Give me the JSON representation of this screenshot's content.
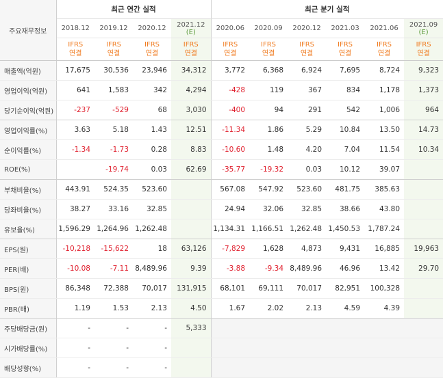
{
  "header": {
    "corner": "주요재무정보",
    "annual_title": "최근 연간 실적",
    "quarter_title": "최근 분기 실적",
    "periods": [
      "2018.12",
      "2019.12",
      "2020.12",
      "2021.12",
      "2020.06",
      "2020.09",
      "2020.12",
      "2021.03",
      "2021.06",
      "2021.09"
    ],
    "est_suffix": "(E)",
    "ifrs": "IFRS",
    "consol": "연결"
  },
  "rows": [
    {
      "label": "매출액(억원)",
      "values": [
        "17,675",
        "30,536",
        "23,946",
        "34,312",
        "3,772",
        "6,368",
        "6,924",
        "7,695",
        "8,724",
        "9,323"
      ]
    },
    {
      "label": "영업이익(억원)",
      "values": [
        "641",
        "1,583",
        "342",
        "4,294",
        "-428",
        "119",
        "367",
        "834",
        "1,178",
        "1,373"
      ]
    },
    {
      "label": "당기순이익(억원)",
      "values": [
        "-237",
        "-529",
        "68",
        "3,030",
        "-400",
        "94",
        "291",
        "542",
        "1,006",
        "964"
      ]
    },
    {
      "label": "영업이익률(%)",
      "values": [
        "3.63",
        "5.18",
        "1.43",
        "12.51",
        "-11.34",
        "1.86",
        "5.29",
        "10.84",
        "13.50",
        "14.73"
      ]
    },
    {
      "label": "순이익률(%)",
      "values": [
        "-1.34",
        "-1.73",
        "0.28",
        "8.83",
        "-10.60",
        "1.48",
        "4.20",
        "7.04",
        "11.54",
        "10.34"
      ]
    },
    {
      "label": "ROE(%)",
      "values": [
        "",
        "-19.74",
        "0.03",
        "62.69",
        "-35.77",
        "-19.32",
        "0.03",
        "10.12",
        "39.07",
        ""
      ]
    },
    {
      "label": "부채비율(%)",
      "values": [
        "443.91",
        "524.35",
        "523.60",
        "",
        "567.08",
        "547.92",
        "523.60",
        "481.75",
        "385.63",
        ""
      ]
    },
    {
      "label": "당좌비율(%)",
      "values": [
        "38.27",
        "33.16",
        "32.85",
        "",
        "24.94",
        "32.06",
        "32.85",
        "38.66",
        "43.80",
        ""
      ]
    },
    {
      "label": "유보율(%)",
      "values": [
        "1,596.29",
        "1,264.96",
        "1,262.48",
        "",
        "1,134.31",
        "1,166.51",
        "1,262.48",
        "1,450.53",
        "1,787.24",
        ""
      ]
    },
    {
      "label": "EPS(원)",
      "values": [
        "-10,218",
        "-15,622",
        "18",
        "63,126",
        "-7,829",
        "1,628",
        "4,873",
        "9,431",
        "16,885",
        "19,963"
      ]
    },
    {
      "label": "PER(배)",
      "values": [
        "-10.08",
        "-7.11",
        "8,489.96",
        "9.39",
        "-3.88",
        "-9.34",
        "8,489.96",
        "46.96",
        "13.42",
        "29.70"
      ]
    },
    {
      "label": "BPS(원)",
      "values": [
        "86,348",
        "72,388",
        "70,017",
        "131,915",
        "68,101",
        "69,111",
        "70,017",
        "82,951",
        "100,328",
        ""
      ]
    },
    {
      "label": "PBR(배)",
      "values": [
        "1.19",
        "1.53",
        "2.13",
        "4.50",
        "1.67",
        "2.02",
        "2.13",
        "4.59",
        "4.39",
        ""
      ]
    },
    {
      "label": "주당배당금(원)",
      "values": [
        "-",
        "-",
        "-",
        "5,333"
      ]
    },
    {
      "label": "시가배당률(%)",
      "values": [
        "-",
        "-",
        "-",
        ""
      ]
    },
    {
      "label": "배당성향(%)",
      "values": [
        "-",
        "-",
        "-",
        ""
      ]
    }
  ],
  "colors": {
    "negative": "#e0202e",
    "ifrs": "#f07a1e",
    "estimate_bg": "#f3f8ee",
    "estimate_text": "#5a9a3a",
    "label_bg": "#f6f6f6"
  }
}
